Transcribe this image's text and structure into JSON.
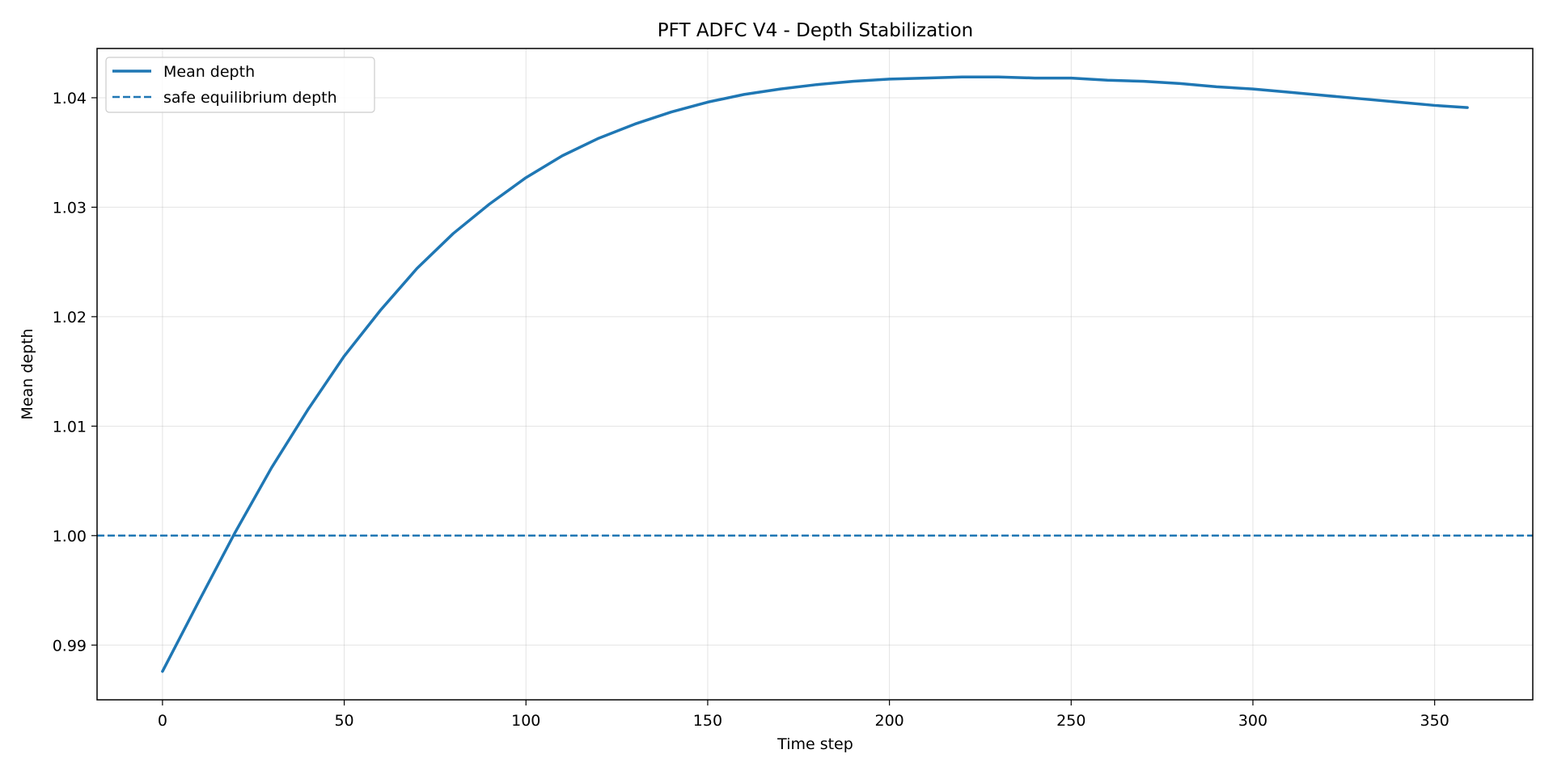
{
  "chart_data": {
    "type": "line",
    "title": "PFT ADFC V4 - Depth Stabilization",
    "xlabel": "Time step",
    "ylabel": "Mean depth",
    "xlim": [
      -18,
      377
    ],
    "ylim": [
      0.985,
      1.0445
    ],
    "xticks": [
      0,
      50,
      100,
      150,
      200,
      250,
      300,
      350
    ],
    "xtick_labels": [
      "0",
      "50",
      "100",
      "150",
      "200",
      "250",
      "300",
      "350"
    ],
    "yticks": [
      0.99,
      1.0,
      1.01,
      1.02,
      1.03,
      1.04
    ],
    "ytick_labels": [
      "0.99",
      "1.00",
      "1.01",
      "1.02",
      "1.03",
      "1.04"
    ],
    "grid": true,
    "legend_position": "upper-left",
    "series": [
      {
        "name": "Mean depth",
        "style": "solid",
        "color": "#1f77b4",
        "x": [
          0,
          10,
          20,
          30,
          40,
          50,
          60,
          70,
          80,
          90,
          100,
          110,
          120,
          130,
          140,
          150,
          160,
          170,
          180,
          190,
          200,
          210,
          220,
          230,
          240,
          250,
          260,
          270,
          280,
          290,
          300,
          310,
          320,
          330,
          340,
          350,
          359
        ],
        "y": [
          0.9876,
          0.994,
          1.0003,
          1.0062,
          1.0115,
          1.0164,
          1.0206,
          1.0244,
          1.0276,
          1.0303,
          1.0327,
          1.0347,
          1.0363,
          1.0376,
          1.0387,
          1.0396,
          1.0403,
          1.0408,
          1.0412,
          1.0415,
          1.0417,
          1.0418,
          1.0419,
          1.0419,
          1.0418,
          1.0418,
          1.0416,
          1.0415,
          1.0413,
          1.041,
          1.0408,
          1.0405,
          1.0402,
          1.0399,
          1.0396,
          1.0393,
          1.0391
        ]
      },
      {
        "name": "safe equilibrium depth",
        "style": "dashed",
        "color": "#1f77b4",
        "hline": 1.0
      }
    ]
  }
}
